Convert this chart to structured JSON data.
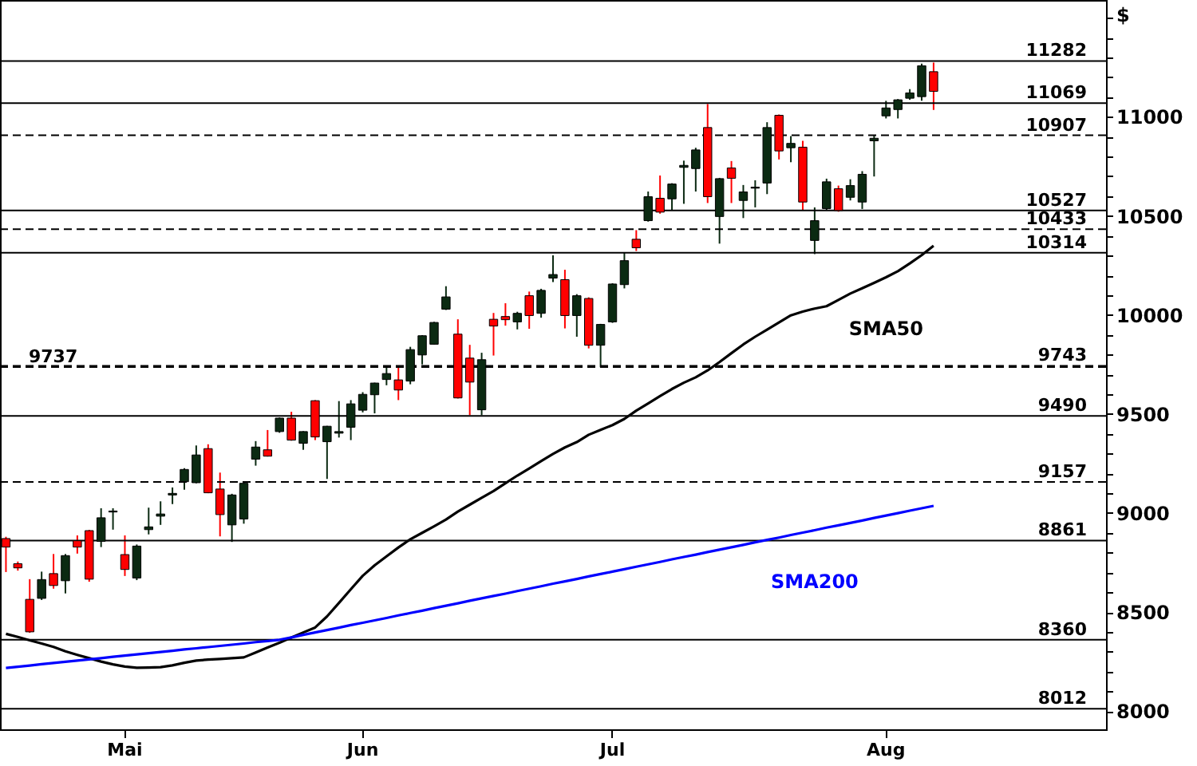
{
  "chart_data": {
    "type": "candlestick",
    "ylabel": "$",
    "categories": [
      null,
      null,
      null,
      null,
      null,
      null,
      null,
      null,
      null,
      null,
      "Mai",
      null,
      null,
      null,
      null,
      null,
      null,
      null,
      null,
      null,
      null,
      null,
      null,
      null,
      null,
      null,
      null,
      null,
      null,
      null,
      "Jun",
      null,
      null,
      null,
      null,
      null,
      null,
      null,
      null,
      null,
      null,
      null,
      null,
      null,
      null,
      null,
      null,
      null,
      null,
      null,
      null,
      "Jul",
      null,
      null,
      null,
      null,
      null,
      null,
      null,
      null,
      null,
      null,
      null,
      null,
      null,
      null,
      null,
      null,
      null,
      null,
      null,
      null,
      null,
      null,
      "Aug",
      null,
      null,
      null,
      null,
      null,
      null,
      null,
      null,
      null,
      null,
      null,
      null,
      null,
      null,
      null,
      null,
      null,
      null
    ],
    "ohlc": [
      [
        8871,
        8880,
        8702,
        8828
      ],
      [
        8744,
        8755,
        8709,
        8723
      ],
      [
        8564,
        8666,
        8395,
        8400
      ],
      [
        8569,
        8704,
        8561,
        8664
      ],
      [
        8694,
        8793,
        8618,
        8634
      ],
      [
        8658,
        8793,
        8594,
        8785
      ],
      [
        8860,
        8887,
        8795,
        8828
      ],
      [
        8911,
        8915,
        8653,
        8666
      ],
      [
        8857,
        9024,
        8828,
        8976
      ],
      [
        9005,
        9024,
        8916,
        9010
      ],
      [
        8790,
        8887,
        8682,
        8715
      ],
      [
        8672,
        8841,
        8661,
        8833
      ],
      [
        8916,
        9027,
        8892,
        8930
      ],
      [
        8984,
        9059,
        8940,
        8995
      ],
      [
        9091,
        9129,
        9045,
        9099
      ],
      [
        9158,
        9226,
        9118,
        9220
      ],
      [
        9153,
        9341,
        9150,
        9293
      ],
      [
        9325,
        9347,
        9100,
        9102
      ],
      [
        9121,
        9204,
        8882,
        8992
      ],
      [
        8940,
        9097,
        8854,
        9091
      ],
      [
        8970,
        9155,
        8946,
        9150
      ],
      [
        9272,
        9363,
        9239,
        9333
      ],
      [
        9319,
        9419,
        9285,
        9287
      ],
      [
        9411,
        9482,
        9405,
        9479
      ],
      [
        9479,
        9511,
        9365,
        9368
      ],
      [
        9352,
        9413,
        9319,
        9411
      ],
      [
        9567,
        9570,
        9368,
        9384
      ],
      [
        9360,
        9440,
        9172,
        9438
      ],
      [
        9403,
        9565,
        9381,
        9411
      ],
      [
        9433,
        9570,
        9368,
        9551
      ],
      [
        9519,
        9610,
        9508,
        9599
      ],
      [
        9597,
        9658,
        9503,
        9656
      ],
      [
        9674,
        9736,
        9645,
        9704
      ],
      [
        9672,
        9741,
        9570,
        9621
      ],
      [
        9666,
        9839,
        9650,
        9825
      ],
      [
        9798,
        9898,
        9750,
        9895
      ],
      [
        9852,
        9965,
        9850,
        9962
      ],
      [
        10029,
        10145,
        10025,
        10091
      ],
      [
        9903,
        9978,
        9578,
        9581
      ],
      [
        9782,
        9849,
        9494,
        9661
      ],
      [
        9521,
        9809,
        9494,
        9774
      ],
      [
        9978,
        10010,
        9795,
        9944
      ],
      [
        9992,
        10059,
        9946,
        9976
      ],
      [
        9965,
        10016,
        9927,
        10008
      ],
      [
        10097,
        10118,
        9930,
        9997
      ],
      [
        10008,
        10132,
        9986,
        10124
      ],
      [
        10186,
        10301,
        10166,
        10204
      ],
      [
        10178,
        10228,
        9932,
        9997
      ],
      [
        9997,
        10105,
        9890,
        10097
      ],
      [
        10083,
        10089,
        9831,
        9847
      ],
      [
        9847,
        9955,
        9736,
        9952
      ],
      [
        9965,
        10160,
        9960,
        10156
      ],
      [
        10153,
        10315,
        10134,
        10274
      ],
      [
        10382,
        10428,
        10323,
        10339
      ],
      [
        10476,
        10623,
        10471,
        10597
      ],
      [
        10589,
        10704,
        10511,
        10519
      ],
      [
        10586,
        10665,
        10527,
        10661
      ],
      [
        10745,
        10779,
        10561,
        10755
      ],
      [
        10739,
        10844,
        10623,
        10833
      ],
      [
        10946,
        11065,
        10565,
        10597
      ],
      [
        10497,
        10692,
        10360,
        10688
      ],
      [
        10742,
        10777,
        10565,
        10690
      ],
      [
        10578,
        10656,
        10489,
        10621
      ],
      [
        10640,
        10680,
        10543,
        10645
      ],
      [
        10666,
        10973,
        10610,
        10946
      ],
      [
        11008,
        11012,
        10785,
        10828
      ],
      [
        10844,
        10903,
        10771,
        10866
      ],
      [
        10847,
        10879,
        10527,
        10570
      ],
      [
        10376,
        10543,
        10307,
        10476
      ],
      [
        10537,
        10688,
        10529,
        10672
      ],
      [
        10637,
        10653,
        10521,
        10527
      ],
      [
        10594,
        10685,
        10578,
        10653
      ],
      [
        10570,
        10726,
        10535,
        10710
      ],
      [
        10879,
        10906,
        10699,
        10892
      ],
      [
        11005,
        11081,
        10992,
        11045
      ],
      [
        11037,
        11090,
        10992,
        11086
      ],
      [
        11094,
        11140,
        11086,
        11121
      ],
      [
        11102,
        11269,
        11081,
        11258
      ],
      [
        11228,
        11274,
        11035,
        11129
      ],
      null,
      null,
      null,
      null,
      null,
      null,
      null,
      null,
      null,
      null,
      null,
      null,
      null,
      null
    ],
    "colors": [
      "#ff0000",
      "#ff0000",
      "#ff0000",
      "#0b2a12",
      "#ff0000",
      "#0b2a12",
      "#ff0000",
      "#ff0000",
      "#0b2a12",
      "#0b2a12",
      "#ff0000",
      "#0b2a12",
      "#0b2a12",
      "#0b2a12",
      "#0b2a12",
      "#0b2a12",
      "#0b2a12",
      "#ff0000",
      "#ff0000",
      "#0b2a12",
      "#0b2a12",
      "#0b2a12",
      "#ff0000",
      "#0b2a12",
      "#ff0000",
      "#0b2a12",
      "#ff0000",
      "#0b2a12",
      "#0b2a12",
      "#0b2a12",
      "#0b2a12",
      "#0b2a12",
      "#0b2a12",
      "#ff0000",
      "#0b2a12",
      "#0b2a12",
      "#0b2a12",
      "#0b2a12",
      "#ff0000",
      "#ff0000",
      "#0b2a12",
      "#ff0000",
      "#ff0000",
      "#0b2a12",
      "#ff0000",
      "#0b2a12",
      "#0b2a12",
      "#ff0000",
      "#0b2a12",
      "#ff0000",
      "#0b2a12",
      "#0b2a12",
      "#0b2a12",
      "#ff0000",
      "#0b2a12",
      "#ff0000",
      "#0b2a12",
      "#0b2a12",
      "#0b2a12",
      "#ff0000",
      "#0b2a12",
      "#ff0000",
      "#0b2a12",
      "#0b2a12",
      "#0b2a12",
      "#ff0000",
      "#0b2a12",
      "#ff0000",
      "#0b2a12",
      "#0b2a12",
      "#ff0000",
      "#0b2a12",
      "#0b2a12",
      "#0b2a12",
      "#0b2a12",
      "#0b2a12",
      "#0b2a12",
      "#0b2a12",
      "#ff0000",
      null,
      null,
      null,
      null,
      null,
      null,
      null,
      null,
      null,
      null,
      null,
      null,
      null,
      null
    ],
    "series": [
      {
        "name": "SMA50",
        "type": "line",
        "color": "#000000",
        "values": [
          8390,
          8374,
          8357,
          8341,
          8324,
          8302,
          8284,
          8267,
          8250,
          8236,
          8225,
          8219,
          8220,
          8222,
          8231,
          8244,
          8255,
          8260,
          8263,
          8267,
          8271,
          8296,
          8321,
          8345,
          8371,
          8397,
          8422,
          8478,
          8546,
          8615,
          8683,
          8736,
          8781,
          8826,
          8867,
          8900,
          8933,
          8967,
          9007,
          9042,
          9077,
          9111,
          9150,
          9189,
          9225,
          9262,
          9298,
          9331,
          9358,
          9395,
          9420,
          9444,
          9475,
          9517,
          9553,
          9590,
          9626,
          9658,
          9685,
          9720,
          9762,
          9807,
          9851,
          9890,
          9926,
          9962,
          9998,
          10017,
          10032,
          10044,
          10076,
          10108,
          10135,
          10162,
          10190,
          10221,
          10260,
          10302,
          10349,
          null,
          null,
          null,
          null,
          null,
          null,
          null,
          null,
          null,
          null,
          null,
          null,
          null,
          null
        ]
      },
      {
        "name": "SMA200",
        "type": "line",
        "color": "#0000ff",
        "values": [
          8218,
          8224,
          8230,
          8237,
          8243,
          8249,
          8255,
          8261,
          8267,
          8274,
          8280,
          8286,
          8292,
          8298,
          8304,
          8311,
          8317,
          8323,
          8329,
          8335,
          8341,
          8348,
          8354,
          8360,
          8372,
          8385,
          8397,
          8409,
          8421,
          8434,
          8446,
          8458,
          8470,
          8483,
          8495,
          8507,
          8520,
          8532,
          8544,
          8557,
          8569,
          8581,
          8593,
          8606,
          8618,
          8630,
          8643,
          8655,
          8667,
          8680,
          8692,
          8704,
          8716,
          8729,
          8741,
          8753,
          8766,
          8778,
          8790,
          8803,
          8815,
          8827,
          8839,
          8852,
          8864,
          8876,
          8889,
          8901,
          8913,
          8926,
          8938,
          8950,
          8962,
          8975,
          8987,
          8999,
          9012,
          9024,
          9036,
          null,
          null,
          null,
          null,
          null,
          null,
          null,
          null,
          null,
          null,
          null,
          null,
          null,
          null
        ]
      }
    ],
    "ref_lines": [
      {
        "axis": "y",
        "value": 11282,
        "label": "11282",
        "line_style": "solid"
      },
      {
        "axis": "y",
        "value": 11069,
        "label": "11069",
        "line_style": "solid"
      },
      {
        "axis": "y",
        "value": 10907,
        "label": "10907",
        "line_style": "dashed"
      },
      {
        "axis": "y",
        "value": 10527,
        "label": "10527",
        "line_style": "solid"
      },
      {
        "axis": "y",
        "value": 10433,
        "label": "10433",
        "line_style": "dashed"
      },
      {
        "axis": "y",
        "value": 10314,
        "label": "10314",
        "line_style": "solid"
      },
      {
        "axis": "y",
        "value": 9743,
        "label": "9743",
        "line_style": "dashed"
      },
      {
        "axis": "y",
        "value": 9737,
        "label": "9737",
        "line_style": "dashed"
      },
      {
        "axis": "y",
        "value": 9490,
        "label": "9490",
        "line_style": "solid"
      },
      {
        "axis": "y",
        "value": 9157,
        "label": "9157",
        "line_style": "dashed"
      },
      {
        "axis": "y",
        "value": 8861,
        "label": "8861",
        "line_style": "solid"
      },
      {
        "axis": "y",
        "value": 8360,
        "label": "8360",
        "line_style": "solid"
      },
      {
        "axis": "y",
        "value": 8012,
        "label": "8012",
        "line_style": "solid"
      }
    ],
    "ylim": [
      7908,
      11590
    ],
    "yticks": [
      8000,
      {
        "value": 8100,
        "label": null
      },
      {
        "value": 8200,
        "label": null
      },
      {
        "value": 8300,
        "label": null
      },
      {
        "value": 8400,
        "label": null
      },
      8500,
      {
        "value": 8600,
        "label": null
      },
      {
        "value": 8700,
        "label": null
      },
      {
        "value": 8800,
        "label": null
      },
      {
        "value": 8900,
        "label": null
      },
      9000,
      {
        "value": 9100,
        "label": null
      },
      {
        "value": 9200,
        "label": null
      },
      {
        "value": 9300,
        "label": null
      },
      {
        "value": 9400,
        "label": null
      },
      9500,
      {
        "value": 9600,
        "label": null
      },
      {
        "value": 9700,
        "label": null
      },
      {
        "value": 9800,
        "label": null
      },
      {
        "value": 9900,
        "label": null
      },
      10000,
      {
        "value": 10100,
        "label": null
      },
      {
        "value": 10200,
        "label": null
      },
      {
        "value": 10300,
        "label": null
      },
      {
        "value": 10400,
        "label": null
      },
      10500,
      {
        "value": 10600,
        "label": null
      },
      {
        "value": 10700,
        "label": null
      },
      {
        "value": 10800,
        "label": null
      },
      {
        "value": 10900,
        "label": null
      },
      11000,
      {
        "value": 11100,
        "label": null
      },
      {
        "value": 11200,
        "label": null
      },
      {
        "value": 11300,
        "label": null
      },
      {
        "value": 11400,
        "label": null
      },
      {
        "value": 11500,
        "label": null
      }
    ]
  }
}
